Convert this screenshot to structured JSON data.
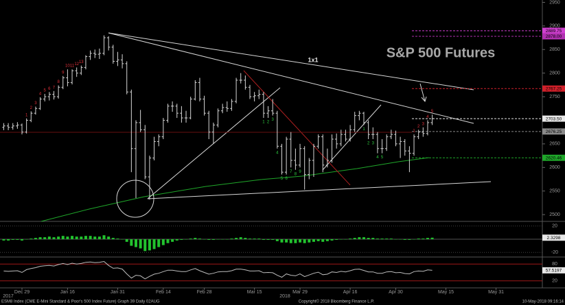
{
  "chart_data": {
    "type": "ohlc",
    "title": "S&P 500 Futures",
    "annotation": "1x1",
    "color": "#d8d8d8",
    "categories": [
      null,
      null,
      null,
      null,
      "Dec 29",
      null,
      null,
      null,
      null,
      null,
      null,
      null,
      null,
      null,
      "Jan 16",
      null,
      null,
      null,
      null,
      null,
      null,
      null,
      null,
      null,
      null,
      "Jan 31",
      null,
      null,
      null,
      null,
      null,
      null,
      null,
      null,
      null,
      "Feb 14",
      null,
      null,
      null,
      null,
      null,
      null,
      null,
      null,
      "Feb 28",
      null,
      null,
      null,
      null,
      null,
      null,
      null,
      null,
      null,
      null,
      "Mar 15",
      null,
      null,
      null,
      null,
      null,
      null,
      null,
      null,
      null,
      "Mar 29",
      null,
      null,
      null,
      null,
      null,
      null,
      null,
      null,
      null,
      null,
      "Apr 16",
      null,
      null,
      null,
      null,
      null,
      null,
      null,
      null,
      null,
      "Apr 30",
      null,
      null,
      null,
      null,
      null,
      null,
      null,
      null,
      null,
      null,
      "May 15",
      null,
      null,
      null,
      null,
      null,
      null,
      null,
      null,
      null,
      null,
      "May 31",
      null,
      null,
      null,
      null,
      null,
      null,
      null,
      null,
      null,
      null
    ],
    "year_labels": [
      "2017",
      "2018"
    ],
    "open": [
      2685,
      2688,
      2685,
      2688,
      2690,
      2675,
      2700,
      2715,
      2725,
      2745,
      2750,
      2755,
      2750,
      2770,
      2790,
      2780,
      2805,
      2800,
      2812,
      2835,
      2842,
      2840,
      2842,
      2875,
      2855,
      2825,
      2828,
      2820,
      2760,
      2640,
      2695,
      2680,
      2580,
      2620,
      2655,
      2665,
      2700,
      2730,
      2730,
      2715,
      2705,
      2705,
      2745,
      2780,
      2745,
      2715,
      2675,
      2690,
      2720,
      2727,
      2725,
      2740,
      2785,
      2785,
      2770,
      2750,
      2752,
      2755,
      2715,
      2720,
      2715,
      2645,
      2590,
      2660,
      2615,
      2605,
      2640,
      2585,
      2615,
      2645,
      2665,
      2605,
      2615,
      2660,
      2650,
      2670,
      2660,
      2680,
      2710,
      2715,
      2695,
      2670,
      2670,
      2640,
      2640,
      2665,
      2670,
      2650,
      2655,
      2635,
      2630,
      2665,
      2675,
      2672,
      2695,
      null,
      null,
      null,
      null,
      null,
      null,
      null,
      null,
      null,
      null,
      null,
      null,
      null,
      null,
      null,
      null,
      null,
      null,
      null,
      null,
      null,
      null,
      null,
      null
    ],
    "high": [
      2694,
      2694,
      2694,
      2696,
      2693,
      2704,
      2719,
      2729,
      2749,
      2756,
      2760,
      2762,
      2774,
      2794,
      2808,
      2808,
      2812,
      2816,
      2838,
      2848,
      2850,
      2852,
      2880,
      2878,
      2860,
      2845,
      2840,
      2825,
      2765,
      2700,
      2722,
      2690,
      2625,
      2665,
      2670,
      2705,
      2735,
      2740,
      2735,
      2730,
      2720,
      2750,
      2785,
      2790,
      2752,
      2720,
      2695,
      2725,
      2735,
      2740,
      2745,
      2790,
      2800,
      2795,
      2775,
      2760,
      2765,
      2760,
      2730,
      2745,
      2720,
      2650,
      2665,
      2675,
      2640,
      2650,
      2645,
      2620,
      2650,
      2670,
      2670,
      2640,
      2670,
      2672,
      2680,
      2680,
      2690,
      2718,
      2720,
      2718,
      2700,
      2685,
      2675,
      2660,
      2670,
      2680,
      2678,
      2665,
      2660,
      2645,
      2670,
      2680,
      2685,
      2700,
      2712,
      null,
      null,
      null,
      null,
      null,
      null,
      null,
      null,
      null,
      null,
      null,
      null,
      null,
      null,
      null,
      null,
      null,
      null,
      null,
      null,
      null,
      null,
      null,
      null
    ],
    "low": [
      2679,
      2679,
      2680,
      2682,
      2670,
      2672,
      2696,
      2712,
      2722,
      2740,
      2742,
      2744,
      2746,
      2766,
      2772,
      2776,
      2792,
      2796,
      2808,
      2828,
      2832,
      2830,
      2838,
      2848,
      2820,
      2815,
      2810,
      2755,
      2590,
      2535,
      2675,
      2575,
      2532,
      2615,
      2645,
      2660,
      2695,
      2718,
      2705,
      2695,
      2695,
      2702,
      2742,
      2740,
      2710,
      2660,
      2650,
      2685,
      2715,
      2718,
      2720,
      2736,
      2778,
      2765,
      2745,
      2740,
      2745,
      2705,
      2705,
      2710,
      2640,
      2585,
      2585,
      2600,
      2595,
      2600,
      2553,
      2575,
      2580,
      2640,
      2590,
      2600,
      2610,
      2640,
      2645,
      2655,
      2655,
      2675,
      2700,
      2690,
      2660,
      2660,
      2630,
      2630,
      2635,
      2660,
      2645,
      2620,
      2625,
      2590,
      2625,
      2660,
      2665,
      2668,
      2690,
      null,
      null,
      null,
      null,
      null,
      null,
      null,
      null,
      null,
      null,
      null,
      null,
      null,
      null,
      null,
      null,
      null,
      null,
      null,
      null,
      null,
      null,
      null,
      null
    ],
    "close": [
      2688,
      2685,
      2688,
      2690,
      2675,
      2700,
      2715,
      2725,
      2745,
      2750,
      2755,
      2750,
      2770,
      2790,
      2780,
      2805,
      2800,
      2812,
      2835,
      2842,
      2840,
      2842,
      2875,
      2855,
      2825,
      2828,
      2820,
      2760,
      2640,
      2695,
      2680,
      2580,
      2620,
      2655,
      2665,
      2700,
      2730,
      2730,
      2715,
      2705,
      2705,
      2745,
      2780,
      2745,
      2715,
      2675,
      2690,
      2720,
      2727,
      2725,
      2740,
      2785,
      2785,
      2770,
      2750,
      2752,
      2755,
      2715,
      2720,
      2715,
      2645,
      2590,
      2660,
      2615,
      2605,
      2640,
      2585,
      2615,
      2645,
      2665,
      2605,
      2615,
      2660,
      2650,
      2670,
      2660,
      2680,
      2710,
      2715,
      2695,
      2670,
      2670,
      2640,
      2640,
      2665,
      2670,
      2650,
      2655,
      2635,
      2630,
      2665,
      2675,
      2672,
      2695,
      2703.5,
      null,
      null,
      null,
      null,
      null,
      null,
      null,
      null,
      null,
      null,
      null,
      null,
      null,
      null,
      null,
      null,
      null,
      null,
      null,
      null,
      null,
      null,
      null,
      null
    ],
    "td_sell": [
      null,
      null,
      null,
      null,
      null,
      1,
      2,
      3,
      4,
      5,
      6,
      7,
      8,
      9,
      10,
      11,
      12,
      13,
      null,
      null,
      null,
      null,
      null,
      null,
      null,
      null,
      null,
      null,
      null,
      null,
      null,
      null,
      null,
      null,
      null,
      null,
      null,
      null,
      null,
      null,
      null,
      null,
      null,
      null,
      null,
      null,
      null,
      null,
      null,
      null,
      null,
      null,
      null,
      null,
      null,
      null,
      null,
      null,
      null,
      null,
      null,
      null,
      null,
      null,
      null,
      null,
      null,
      null,
      null,
      null,
      null,
      null,
      null,
      null,
      null,
      null,
      null,
      null,
      null,
      null,
      null,
      null,
      null,
      null,
      null,
      null,
      null,
      null,
      null,
      null,
      1,
      2,
      3,
      4,
      5,
      null,
      null,
      null,
      null,
      null,
      null,
      null,
      null,
      null,
      null,
      null,
      null,
      null,
      null,
      null,
      null,
      null,
      null,
      null,
      null,
      null,
      null,
      null,
      null
    ],
    "td_buy": [
      null,
      null,
      null,
      null,
      null,
      null,
      null,
      null,
      null,
      null,
      null,
      null,
      null,
      null,
      null,
      null,
      null,
      null,
      null,
      null,
      null,
      null,
      null,
      null,
      null,
      null,
      null,
      null,
      null,
      null,
      null,
      null,
      null,
      null,
      null,
      null,
      null,
      null,
      null,
      null,
      null,
      null,
      null,
      null,
      null,
      null,
      null,
      null,
      null,
      null,
      null,
      null,
      null,
      null,
      null,
      null,
      null,
      1,
      2,
      3,
      4,
      5,
      6,
      7,
      8,
      9,
      null,
      null,
      null,
      null,
      null,
      null,
      null,
      null,
      null,
      null,
      null,
      null,
      null,
      1,
      2,
      3,
      4,
      5,
      null,
      null,
      null,
      null,
      null,
      null,
      null,
      null,
      null,
      null,
      null,
      null,
      null,
      null,
      null,
      null,
      null,
      null,
      null,
      null,
      null,
      null,
      null,
      null,
      null,
      null,
      null,
      null,
      null,
      null,
      null
    ],
    "sell_color": "#e0303a",
    "buy_color": "#2ecc40",
    "ylim": [
      2490,
      2955
    ],
    "yticks": [
      2500,
      2550,
      2600,
      2650,
      2700,
      2750,
      2800,
      2850,
      2900,
      2950
    ],
    "levels": [
      {
        "price": 2889.75,
        "color": "#d040d0"
      },
      {
        "price": {
          "value": 2878,
          "label": "2878.00"
        },
        "color": "#b030b0"
      },
      {
        "price": 2767.25,
        "color": "#d0202a"
      },
      {
        "price": {
          "value": 2703.5,
          "label": "2703.50"
        },
        "color": "#e8e8e8"
      },
      {
        "price": 2676.25,
        "color": "#8a8a8a"
      },
      {
        "price": 2620.46,
        "color": "#1fa82a"
      }
    ],
    "macd": [
      -2,
      -2,
      -1,
      -1,
      -2,
      0,
      1,
      2,
      3,
      3,
      4,
      3,
      4,
      5,
      4,
      5,
      4,
      4,
      5,
      5,
      4,
      4,
      6,
      4,
      2,
      1,
      0,
      -4,
      -10,
      -12,
      -14,
      -18,
      -17,
      -15,
      -12,
      -9,
      -6,
      -4,
      -2,
      -1,
      0,
      1,
      2,
      1,
      0,
      -1,
      -1,
      0,
      0,
      0,
      1,
      2,
      3,
      2,
      1,
      1,
      1,
      -1,
      -1,
      -1,
      -3,
      -5,
      -5,
      -6,
      -6,
      -5,
      -6,
      -5,
      -4,
      -3,
      -4,
      -3,
      -2,
      -1,
      0,
      0,
      1,
      2,
      3,
      3,
      2,
      2,
      1,
      1,
      1,
      1,
      0,
      0,
      -1,
      -1,
      0,
      1,
      1,
      2,
      2.3298,
      null,
      null,
      null,
      null,
      null,
      null,
      null,
      null,
      null,
      null,
      null,
      null,
      null,
      null,
      null,
      null,
      null,
      null,
      null,
      null,
      null,
      null,
      null,
      null
    ],
    "macd_color": "#22c22e",
    "macd_ylim": [
      -25,
      25
    ],
    "macd_yticks": [
      -20,
      20
    ],
    "rsi": [
      55,
      54,
      55,
      56,
      50,
      60,
      64,
      67,
      72,
      74,
      75,
      73,
      78,
      82,
      78,
      83,
      80,
      82,
      86,
      87,
      85,
      86,
      89,
      75,
      65,
      66,
      62,
      45,
      30,
      40,
      38,
      27,
      36,
      44,
      47,
      53,
      58,
      58,
      55,
      53,
      53,
      59,
      64,
      56,
      50,
      44,
      47,
      52,
      53,
      53,
      56,
      62,
      62,
      59,
      55,
      55,
      56,
      49,
      50,
      49,
      40,
      33,
      45,
      40,
      38,
      45,
      35,
      41,
      47,
      51,
      42,
      44,
      52,
      50,
      54,
      52,
      56,
      61,
      62,
      57,
      52,
      52,
      47,
      47,
      52,
      53,
      49,
      50,
      46,
      45,
      53,
      55,
      54,
      59,
      57.5197,
      null,
      null,
      null,
      null,
      null,
      null,
      null,
      null,
      null,
      null,
      null,
      null,
      null,
      null,
      null,
      null,
      null,
      null,
      null,
      null,
      null,
      null,
      null,
      null
    ],
    "rsi_color": "#bdbdbd",
    "rsi_ylim": [
      0,
      100
    ],
    "rsi_yticks": [
      20,
      80
    ],
    "grid": false
  },
  "footer": {
    "left": "ESM8 Index (CME E-Mini Standard & Poor's 500 Index Future) Graph 39  Daily 02AUG",
    "center": "Copyright© 2018 Bloomberg Finance L.P.",
    "right": "10-May-2018 09:16:14"
  }
}
